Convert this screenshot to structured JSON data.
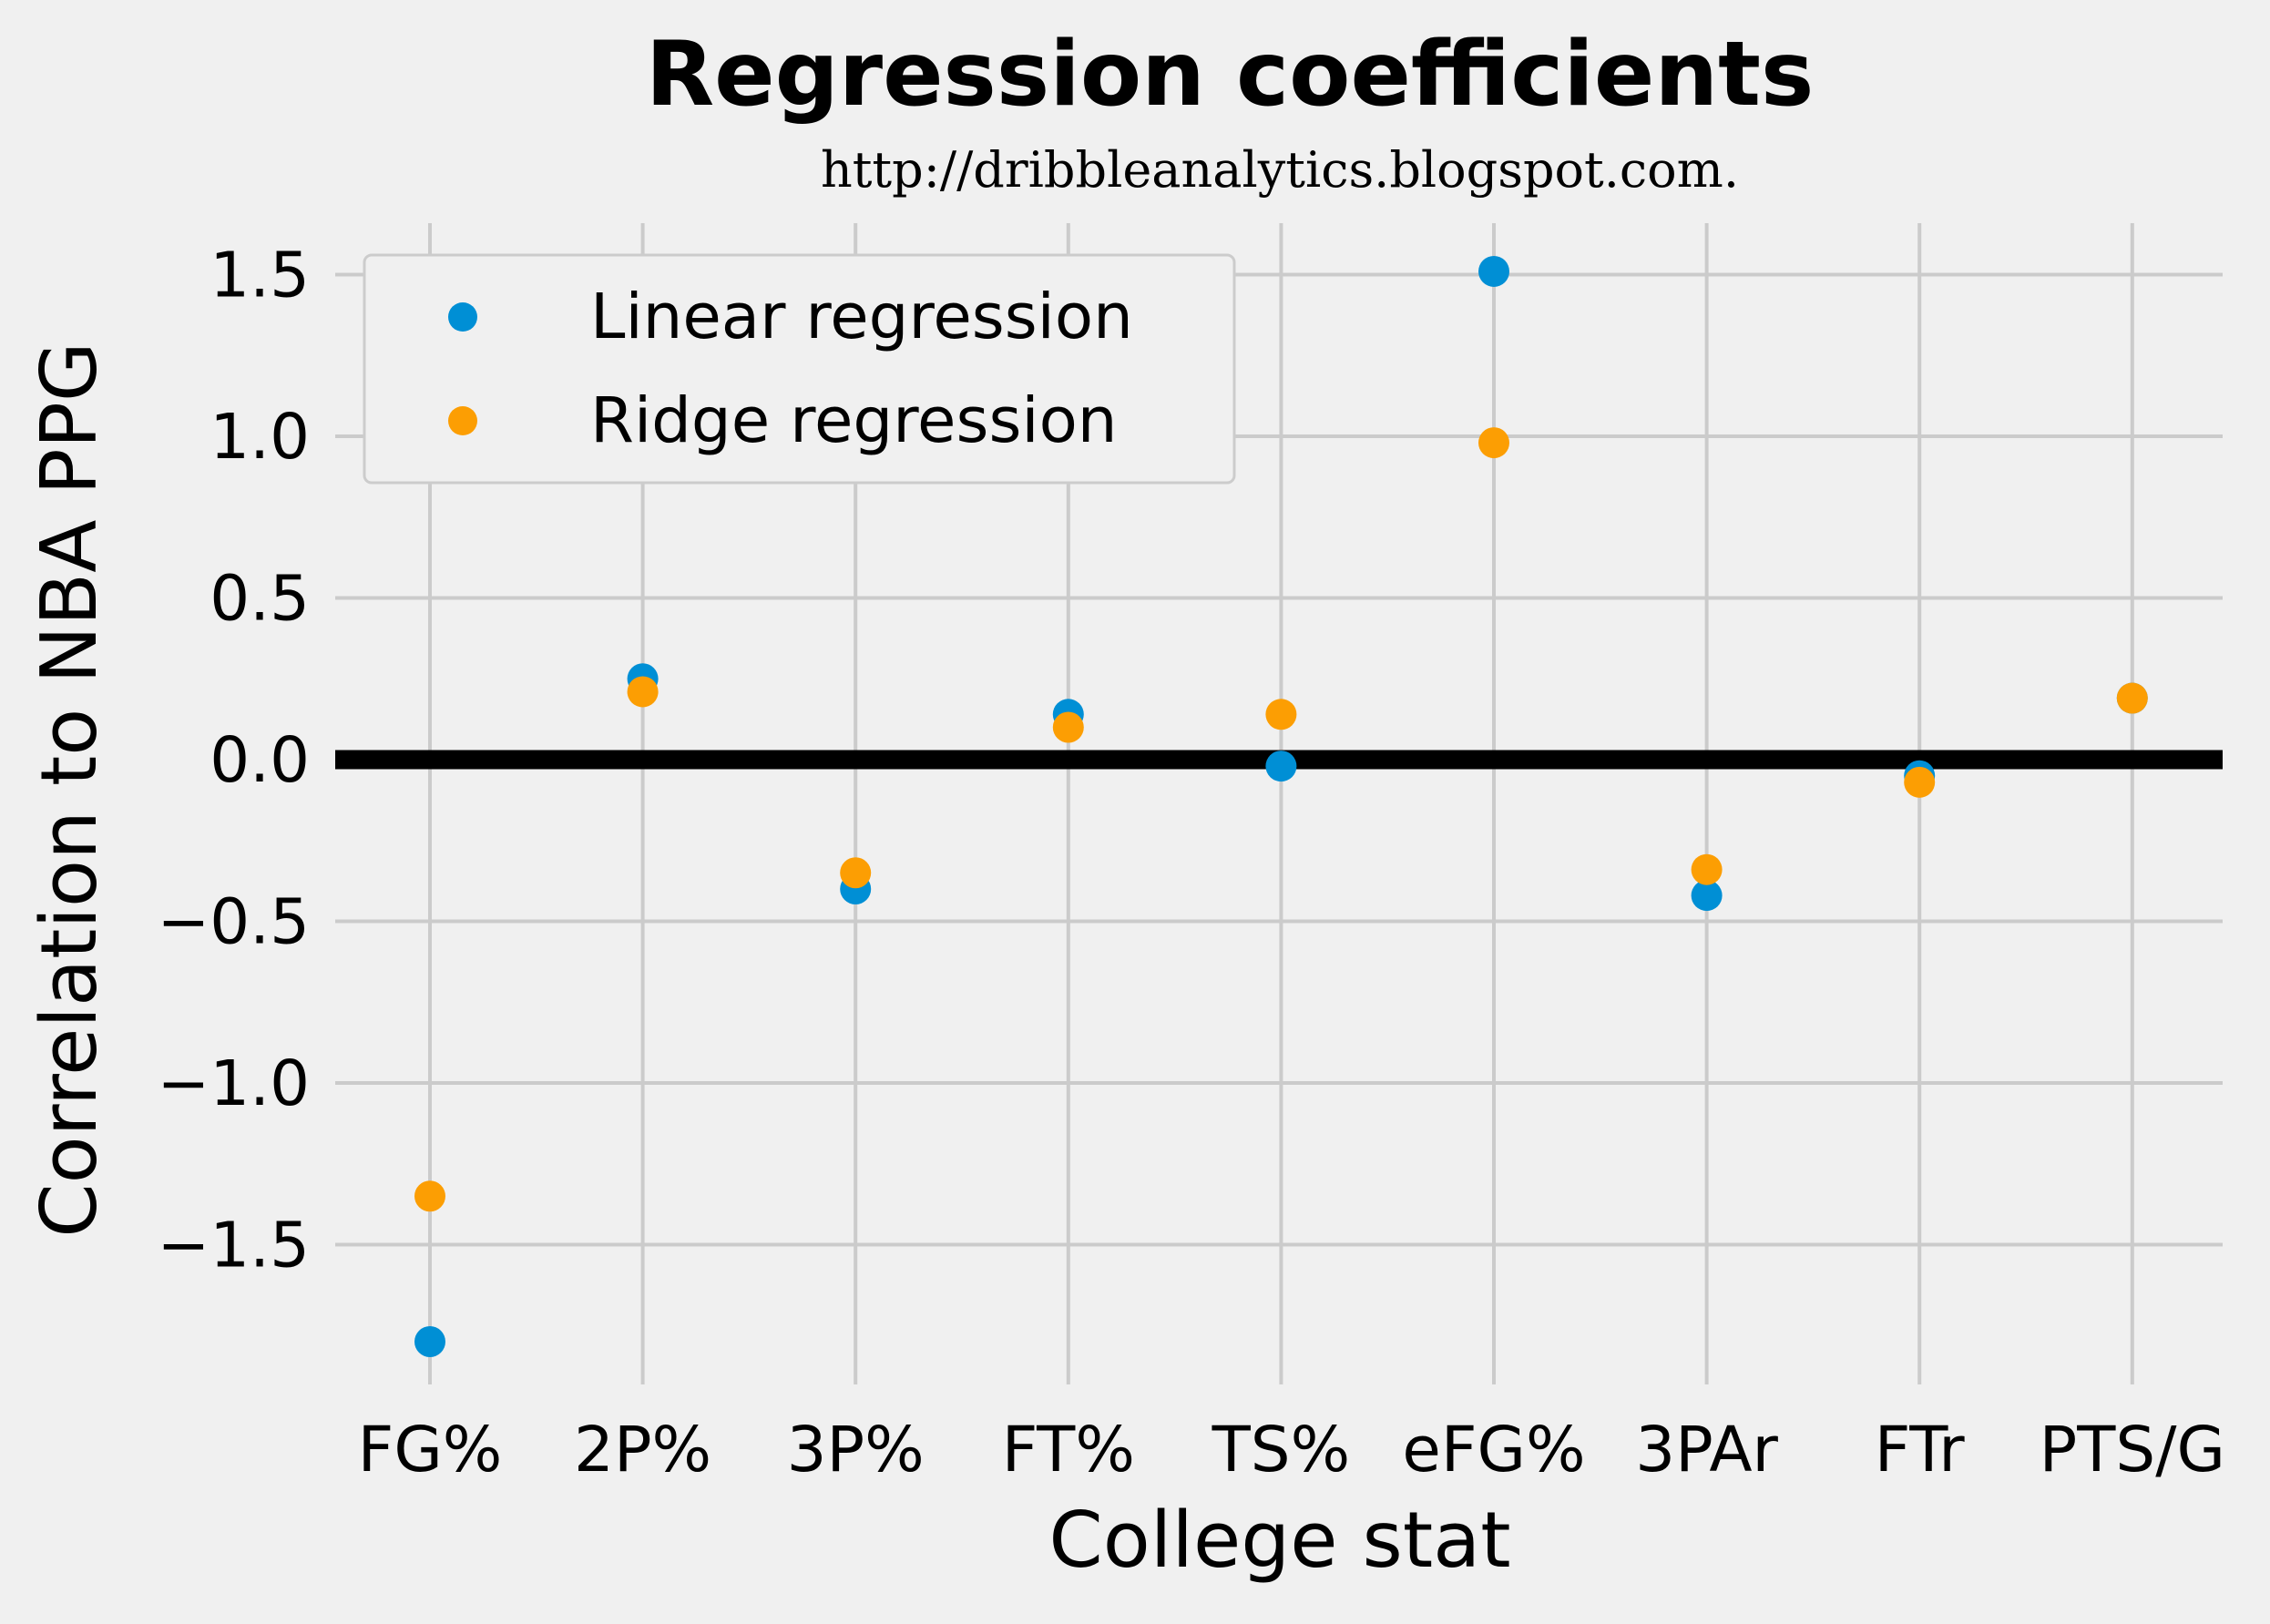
{
  "chart_data": {
    "type": "scatter",
    "title": "Regression coefficients",
    "subtitle": "http://dribbleanalytics.blogspot.com.",
    "xlabel": "College stat",
    "ylabel": "Correlation to NBA PPG",
    "categories": [
      "FG%",
      "2P%",
      "3P%",
      "FT%",
      "TS%",
      "eFG%",
      "3PAr",
      "FTr",
      "PTS/G"
    ],
    "ylim": [
      -1.9,
      1.65
    ],
    "yticks": [
      1.5,
      1.0,
      0.5,
      0.0,
      -0.5,
      -1.0,
      -1.5
    ],
    "ytick_labels": [
      "1.5",
      "1.0",
      "0.5",
      "0.0",
      "−0.5",
      "−1.0",
      "−1.5"
    ],
    "grid": true,
    "zero_line": true,
    "legend_position": "top-left",
    "series": [
      {
        "name": "Linear regression",
        "color": "#008fd5",
        "values": [
          -1.8,
          0.25,
          -0.4,
          0.14,
          -0.02,
          1.51,
          -0.42,
          -0.05,
          0.19
        ]
      },
      {
        "name": "Ridge regression",
        "color": "#fc9e03",
        "values": [
          -1.35,
          0.21,
          -0.35,
          0.1,
          0.14,
          0.98,
          -0.34,
          -0.07,
          0.19
        ]
      }
    ]
  }
}
